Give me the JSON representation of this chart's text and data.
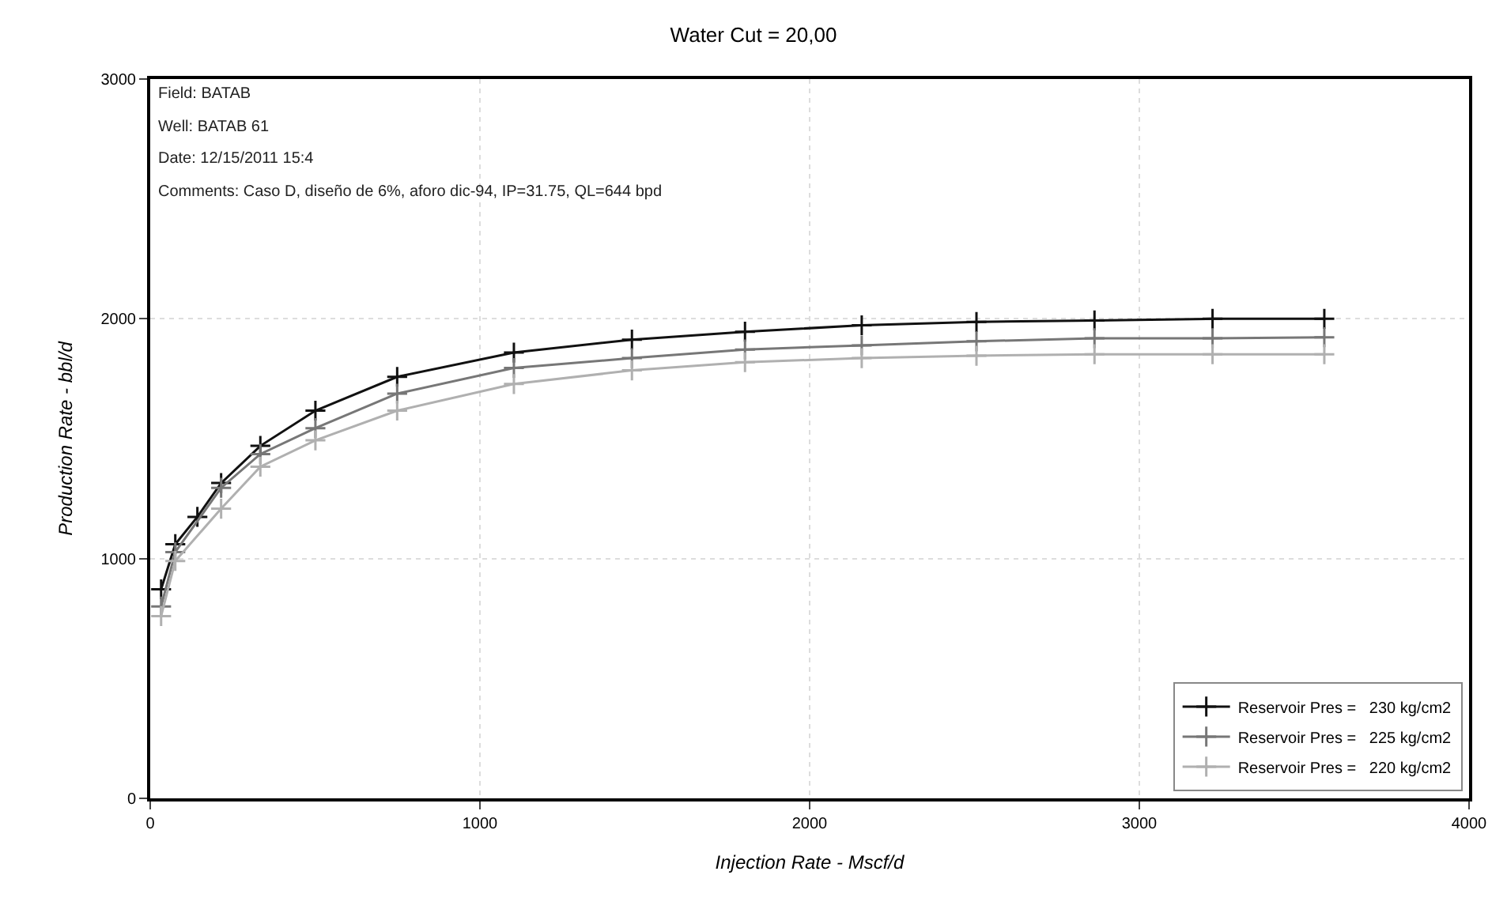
{
  "chart_data": {
    "type": "line",
    "title": "Water Cut = 20,00",
    "xlabel": "Injection Rate - Mscf/d",
    "ylabel": "Production Rate - bbl/d",
    "annotations": [
      "Field: BATAB",
      "Well: BATAB 61",
      "Date: 12/15/2011 15:4",
      "Comments: Caso D, diseño de 6%, aforo dic-94, IP=31.75, QL=644 bpd"
    ],
    "xlim": [
      0,
      4000
    ],
    "xticks": [
      0,
      1000,
      2000,
      3000,
      4000
    ],
    "ylim": [
      0,
      3000
    ],
    "yticks": [
      0,
      1000,
      2000,
      3000
    ],
    "grid": true,
    "legend": "bottom right",
    "marker": "cross",
    "line_style": "solid",
    "series": [
      {
        "name": "Reservoir Pres =   230 kg/cm2",
        "color": "#111111",
        "x": [
          33,
          76,
          143,
          215,
          334,
          501,
          749,
          1103,
          1461,
          1804,
          2158,
          2506,
          2864,
          3222,
          3561
        ],
        "values": [
          872,
          1060,
          1174,
          1315,
          1470,
          1617,
          1758,
          1859,
          1913,
          1946,
          1973,
          1987,
          1993,
          2000,
          2000
        ]
      },
      {
        "name": "Reservoir Pres =   225 kg/cm2",
        "color": "#777777",
        "x": [
          33,
          76,
          215,
          334,
          501,
          749,
          1103,
          1461,
          1804,
          2158,
          2506,
          2864,
          3222,
          3561
        ],
        "values": [
          800,
          1027,
          1295,
          1436,
          1544,
          1688,
          1795,
          1836,
          1872,
          1889,
          1906,
          1919,
          1919,
          1923
        ]
      },
      {
        "name": "Reservoir Pres =   220 kg/cm2",
        "color": "#b0b0b0",
        "x": [
          33,
          76,
          215,
          334,
          501,
          749,
          1103,
          1461,
          1804,
          2158,
          2506,
          2864,
          3222,
          3561
        ],
        "values": [
          760,
          990,
          1208,
          1383,
          1493,
          1617,
          1728,
          1785,
          1819,
          1836,
          1846,
          1852,
          1852,
          1852
        ]
      }
    ]
  }
}
